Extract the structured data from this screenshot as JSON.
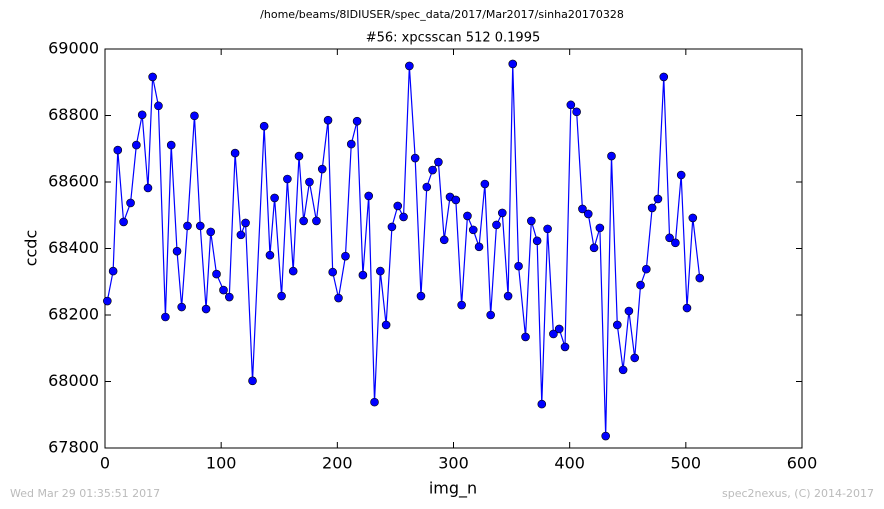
{
  "chart_data": {
    "type": "line",
    "suptitle": "/home/beams/8IDIUSER/spec_data/2017/Mar2017/sinha20170328",
    "title": "#56: xpcsscan 512 0.1995",
    "xlabel": "img_n",
    "ylabel": "ccdc",
    "footer_left": "Wed Mar 29 01:35:51 2017",
    "footer_right": "spec2nexus, (C) 2014-2017",
    "x": [
      2,
      7,
      11,
      16,
      22,
      27,
      32,
      37,
      41,
      46,
      52,
      57,
      62,
      66,
      71,
      77,
      82,
      87,
      91,
      96,
      102,
      107,
      112,
      117,
      121,
      127,
      137,
      142,
      146,
      152,
      157,
      162,
      167,
      171,
      176,
      182,
      187,
      192,
      196,
      201,
      207,
      212,
      217,
      222,
      227,
      232,
      237,
      242,
      247,
      252,
      257,
      262,
      267,
      272,
      277,
      282,
      287,
      292,
      297,
      302,
      307,
      312,
      317,
      322,
      327,
      332,
      337,
      342,
      347,
      351,
      356,
      362,
      367,
      372,
      376,
      381,
      386,
      391,
      396,
      401,
      406,
      411,
      416,
      421,
      426,
      431,
      436,
      441,
      446,
      451,
      456,
      461,
      466,
      471,
      476,
      481,
      486,
      491,
      496,
      501,
      506,
      512
    ],
    "series": [
      {
        "name": "ccdc",
        "color": "#0000ff",
        "values": [
          68242,
          68332,
          68696,
          68480,
          68537,
          68711,
          68802,
          68582,
          68916,
          68829,
          68194,
          68711,
          68392,
          68224,
          68468,
          68799,
          68468,
          68218,
          68450,
          68323,
          68275,
          68254,
          68687,
          68441,
          68477,
          68002,
          68768,
          68380,
          68552,
          68257,
          68609,
          68332,
          68678,
          68483,
          68600,
          68483,
          68639,
          68786,
          68329,
          68251,
          68377,
          68714,
          68783,
          68320,
          68558,
          67938,
          68332,
          68170,
          68465,
          68528,
          68495,
          68949,
          68672,
          68257,
          68585,
          68636,
          68660,
          68426,
          68555,
          68546,
          68230,
          68498,
          68456,
          68405,
          68594,
          68200,
          68471,
          68507,
          68257,
          68955,
          68347,
          68134,
          68483,
          68423,
          67932,
          68459,
          68143,
          68158,
          68104,
          68832,
          68811,
          68519,
          68504,
          68402,
          68462,
          67836,
          68678,
          68170,
          68035,
          68212,
          68071,
          68290,
          68338,
          68522,
          68549,
          68916,
          68432,
          68417,
          68621,
          68221,
          68492,
          68311
        ]
      }
    ],
    "xlim": [
      0,
      600
    ],
    "xticks": [
      0,
      100,
      200,
      300,
      400,
      500,
      600
    ],
    "ylim": [
      67800,
      69000
    ],
    "yticks": [
      67800,
      68000,
      68200,
      68400,
      68600,
      68800,
      69000
    ]
  }
}
